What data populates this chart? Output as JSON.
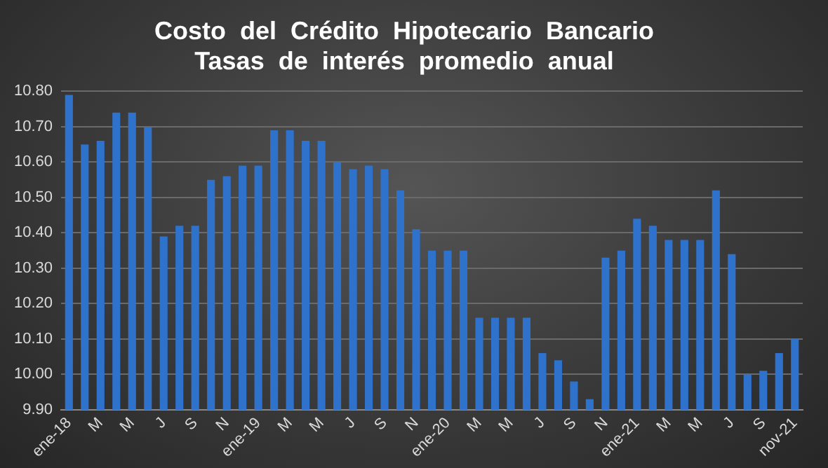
{
  "chart_data": {
    "type": "bar",
    "title": [
      "Costo  del  Crédito  Hipotecario  Bancario",
      "Tasas  de  interés  promedio  anual"
    ],
    "categories": [
      "ene-18",
      null,
      "M",
      null,
      "M",
      null,
      "J",
      null,
      "S",
      null,
      "N",
      null,
      "ene-19",
      null,
      "M",
      null,
      "M",
      null,
      "J",
      null,
      "S",
      null,
      "N",
      null,
      "ene-20",
      null,
      "M",
      null,
      "M",
      null,
      "J",
      null,
      "S",
      null,
      "N",
      null,
      "ene-21",
      null,
      "M",
      null,
      "M",
      null,
      "J",
      null,
      "S",
      null,
      "nov-21"
    ],
    "values": [
      10.79,
      10.65,
      10.66,
      10.74,
      10.74,
      10.7,
      10.39,
      10.42,
      10.42,
      10.55,
      10.56,
      10.59,
      10.59,
      10.69,
      10.69,
      10.66,
      10.66,
      10.6,
      10.58,
      10.59,
      10.58,
      10.52,
      10.41,
      10.35,
      10.35,
      10.35,
      10.16,
      10.16,
      10.16,
      10.16,
      10.06,
      10.04,
      9.98,
      9.93,
      10.33,
      10.35,
      10.44,
      10.42,
      10.38,
      10.38,
      10.38,
      10.52,
      10.34,
      10.0,
      10.01,
      10.06,
      10.1
    ],
    "color": "#2f72cc",
    "ylim": [
      9.9,
      10.8
    ],
    "yticks": [
      {
        "value": 9.9,
        "label": "9.90"
      },
      {
        "value": 10,
        "label": "10.00"
      },
      {
        "value": 10.1,
        "label": "10.10"
      },
      {
        "value": 10.2,
        "label": "10.20"
      },
      {
        "value": 10.3,
        "label": "10.30"
      },
      {
        "value": 10.4,
        "label": "10.40"
      },
      {
        "value": 10.5,
        "label": "10.50"
      },
      {
        "value": 10.6,
        "label": "10.60"
      },
      {
        "value": 10.7,
        "label": "10.70"
      },
      {
        "value": 10.8,
        "label": "10.80"
      }
    ],
    "grid": "y"
  }
}
